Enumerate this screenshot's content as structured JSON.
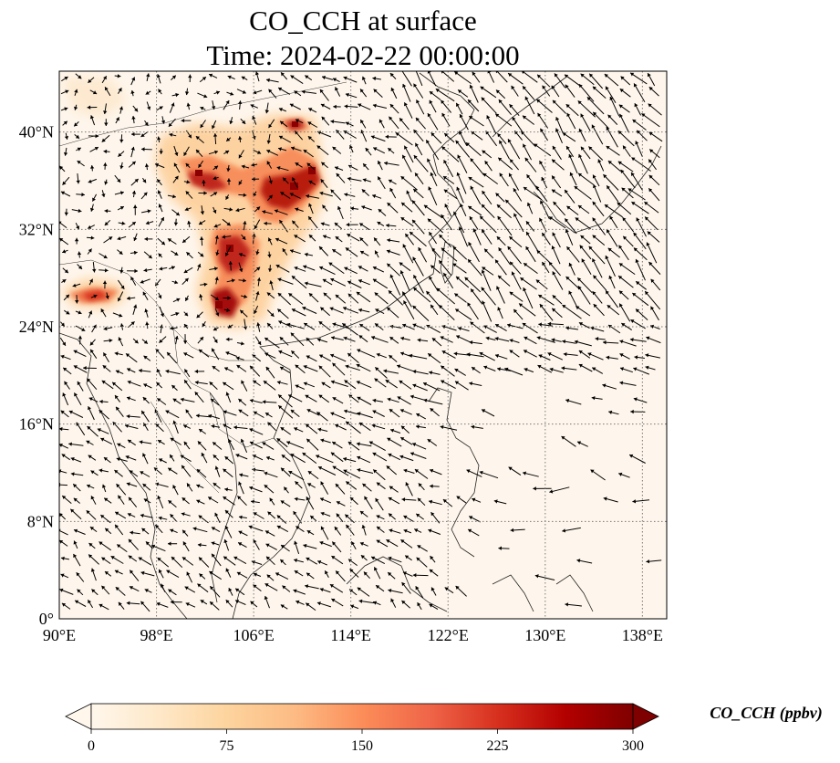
{
  "title_line1": "CO_CCH at surface",
  "title_line2": "Time: 2024-02-22 00:00:00",
  "map": {
    "lon_range": [
      90,
      140
    ],
    "lat_range": [
      0,
      45
    ],
    "lon_ticks": [
      "90°E",
      "98°E",
      "106°E",
      "114°E",
      "122°E",
      "130°E",
      "138°E"
    ],
    "lat_ticks": [
      "0°",
      "8°N",
      "16°N",
      "24°N",
      "32°N",
      "40°N"
    ],
    "lon_tick_values": [
      90,
      98,
      106,
      114,
      122,
      130,
      138
    ],
    "lat_tick_values": [
      0,
      8,
      16,
      24,
      32,
      40
    ],
    "gridlines": "dotted",
    "colormap": "OrRd"
  },
  "colorbar": {
    "label": "CO_CCH (ppbv)",
    "ticks": [
      "0",
      "75",
      "150",
      "225",
      "300"
    ],
    "tick_values": [
      0,
      75,
      150,
      225,
      300
    ],
    "range": [
      0,
      300
    ],
    "extend": "both",
    "colors": [
      "#fff7ec",
      "#fee8c8",
      "#fdd49e",
      "#fdbb84",
      "#fc8d59",
      "#ef6548",
      "#d7301f",
      "#b30000",
      "#7f0000"
    ]
  }
}
